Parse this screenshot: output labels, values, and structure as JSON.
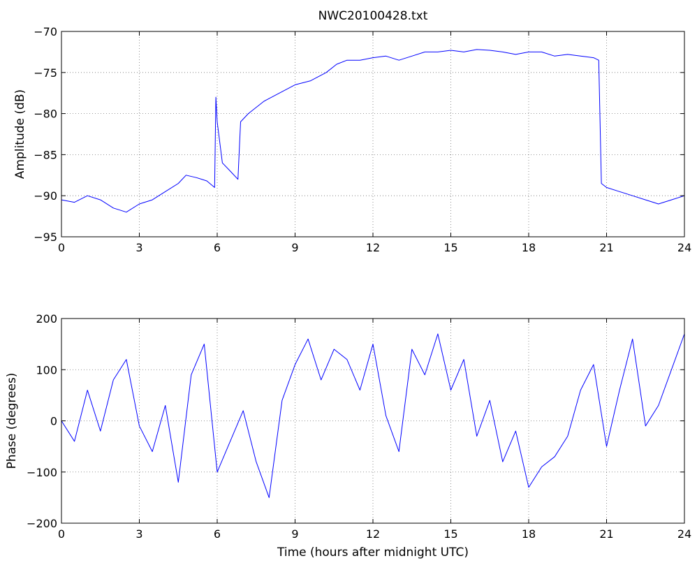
{
  "chart_data": [
    {
      "type": "line",
      "title": "NWC20100428.txt",
      "xlabel": "",
      "ylabel": "Amplitude (dB)",
      "xlim": [
        0,
        24
      ],
      "ylim": [
        -95,
        -70
      ],
      "xticks": [
        0,
        3,
        6,
        9,
        12,
        15,
        18,
        21,
        24
      ],
      "yticks": [
        -95,
        -90,
        -85,
        -80,
        -75,
        -70
      ],
      "xtick_labels": [
        "0",
        "3",
        "6",
        "9",
        "12",
        "15",
        "18",
        "21",
        "24"
      ],
      "ytick_labels": [
        "−95",
        "−90",
        "−85",
        "−80",
        "−75",
        "−70"
      ],
      "grid": true,
      "color": "#0000ff",
      "series": [
        {
          "x": [
            0,
            0.5,
            1,
            1.5,
            2,
            2.5,
            3,
            3.5,
            4,
            4.5,
            4.8,
            5.2,
            5.6,
            5.9,
            5.95,
            6.0,
            6.2,
            6.5,
            6.8,
            6.9,
            7.2,
            7.8,
            8.4,
            9.0,
            9.6,
            10.2,
            10.6,
            11.0,
            11.5,
            12,
            12.5,
            13,
            13.5,
            14,
            14.5,
            15,
            15.5,
            16,
            16.5,
            17,
            17.5,
            18,
            18.5,
            19,
            19.5,
            20,
            20.5,
            20.7,
            20.75,
            20.8,
            21,
            21.5,
            22,
            22.5,
            23,
            23.5,
            24
          ],
          "y": [
            -90.5,
            -90.8,
            -90,
            -90.5,
            -91.5,
            -92,
            -91,
            -90.5,
            -89.5,
            -88.5,
            -87.5,
            -87.8,
            -88.2,
            -89,
            -78,
            -81,
            -86,
            -87,
            -88,
            -81,
            -80,
            -78.5,
            -77.5,
            -76.5,
            -76,
            -75,
            -74,
            -73.5,
            -73.5,
            -73.2,
            -73,
            -73.5,
            -73,
            -72.5,
            -72.5,
            -72.3,
            -72.5,
            -72.2,
            -72.3,
            -72.5,
            -72.8,
            -72.5,
            -72.5,
            -73,
            -72.8,
            -73,
            -73.2,
            -73.5,
            -81,
            -88.5,
            -89,
            -89.5,
            -90,
            -90.5,
            -91,
            -90.5,
            -90
          ]
        }
      ]
    },
    {
      "type": "line",
      "title": "",
      "xlabel": "Time (hours after midnight UTC)",
      "ylabel": "Phase (degrees)",
      "xlim": [
        0,
        24
      ],
      "ylim": [
        -200,
        200
      ],
      "xticks": [
        0,
        3,
        6,
        9,
        12,
        15,
        18,
        21,
        24
      ],
      "yticks": [
        -200,
        -100,
        0,
        100,
        200
      ],
      "xtick_labels": [
        "0",
        "3",
        "6",
        "9",
        "12",
        "15",
        "18",
        "21",
        "24"
      ],
      "ytick_labels": [
        "−200",
        "−100",
        "0",
        "100",
        "200"
      ],
      "grid": true,
      "color": "#0000ff",
      "series": [
        {
          "x": [
            0,
            0.5,
            1,
            1.5,
            2,
            2.5,
            3,
            3.5,
            4,
            4.5,
            5,
            5.5,
            6,
            6.5,
            7,
            7.5,
            8,
            8.5,
            9,
            9.5,
            10,
            10.5,
            11,
            11.5,
            12,
            12.5,
            13,
            13.5,
            14,
            14.5,
            15,
            15.5,
            16,
            16.5,
            17,
            17.5,
            18,
            18.5,
            19,
            19.5,
            20,
            20.5,
            21,
            21.5,
            22,
            22.5,
            23,
            23.5,
            24
          ],
          "y": [
            0,
            -40,
            60,
            -20,
            80,
            120,
            -10,
            -60,
            30,
            -120,
            90,
            150,
            -100,
            -40,
            20,
            -80,
            -150,
            40,
            110,
            160,
            80,
            140,
            120,
            60,
            150,
            10,
            -60,
            140,
            90,
            170,
            60,
            120,
            -30,
            40,
            -80,
            -20,
            -130,
            -90,
            -70,
            -30,
            60,
            110,
            -50,
            60,
            160,
            -10,
            30,
            100,
            170
          ]
        }
      ]
    }
  ]
}
